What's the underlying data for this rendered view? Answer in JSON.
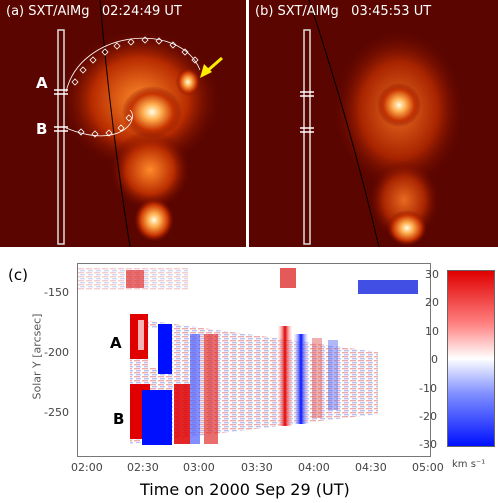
{
  "panel_a": {
    "label": "(a) SXT/AlMg",
    "time": "02:24:49 UT",
    "marker_a": "A",
    "marker_b": "B"
  },
  "panel_b": {
    "label": "(b) SXT/AlMg",
    "time": "03:45:53 UT"
  },
  "panel_c": {
    "label": "(c)",
    "marker_a": "A",
    "marker_b": "B",
    "ylabel": "Solar Y [arcsec]",
    "xlabel": "Time on 2000 Sep 29 (UT)",
    "yticks": [
      "-150",
      "-200",
      "-250"
    ],
    "xticks": [
      "02:00",
      "02:30",
      "03:00",
      "03:30",
      "04:00",
      "04:30",
      "05:00"
    ],
    "colorbar_ticks": [
      "30",
      "20",
      "10",
      "0",
      "-10",
      "-20",
      "-30"
    ],
    "colorbar_unit": "km s⁻¹"
  },
  "colors": {
    "red": "#e00000",
    "blue": "#0010ff",
    "arrow": "#ffee00",
    "hot": "#ff6600"
  }
}
